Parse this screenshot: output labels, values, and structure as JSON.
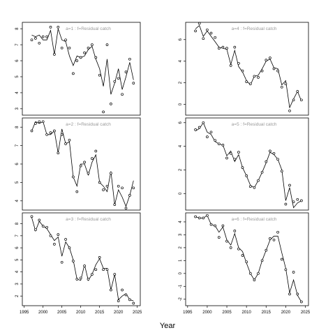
{
  "chart_data": {
    "type": "line",
    "xlabel": "Year",
    "xticks": [
      1995,
      2000,
      2005,
      2010,
      2015,
      2020,
      2025
    ],
    "panels": [
      {
        "label": "a=1  :  f=Residual catch",
        "ylim": [
          2.6,
          8.4
        ],
        "yticks": [
          3,
          4,
          5,
          6,
          7,
          8
        ],
        "line": {
          "x": [
            1997,
            1998,
            1999,
            2000,
            2001,
            2002,
            2003,
            2004,
            2005,
            2006,
            2007,
            2008,
            2009,
            2010,
            2011,
            2012,
            2013,
            2014,
            2015,
            2016,
            2017,
            2018,
            2019,
            2020,
            2021,
            2022,
            2023,
            2024
          ],
          "y": [
            7.6,
            7.5,
            7.6,
            7.3,
            7.3,
            7.9,
            6.4,
            8.0,
            7.3,
            7.2,
            6.3,
            5.7,
            6.3,
            6.2,
            6.3,
            6.7,
            6.9,
            6.1,
            5.5,
            4.4,
            6.1,
            3.9,
            4.6,
            5.5,
            4.2,
            5.0,
            5.9,
            4.8
          ]
        },
        "points": {
          "x": [
            1997,
            1998,
            1999,
            2000,
            2001,
            2002,
            2003,
            2004,
            2005,
            2006,
            2007,
            2008,
            2009,
            2010,
            2011,
            2012,
            2013,
            2014,
            2015,
            2016,
            2017,
            2018,
            2019,
            2020,
            2021,
            2022,
            2023,
            2024
          ],
          "y": [
            7.3,
            7.4,
            7.1,
            7.5,
            7.5,
            8.1,
            6.4,
            8.1,
            6.8,
            7.3,
            6.8,
            5.2,
            6.0,
            6.2,
            6.5,
            6.8,
            7.0,
            6.2,
            5.1,
            2.8,
            7.0,
            3.3,
            4.7,
            4.9,
            3.9,
            5.3,
            6.1,
            4.6
          ]
        }
      },
      {
        "label": "a=2  :  f=Residual catch",
        "ylim": [
          3.5,
          8.5
        ],
        "yticks": [
          4,
          5,
          6,
          7,
          8
        ],
        "line": {
          "x": [
            1997,
            1998,
            1999,
            2000,
            2001,
            2002,
            2003,
            2004,
            2005,
            2006,
            2007,
            2008,
            2009,
            2010,
            2011,
            2012,
            2013,
            2014,
            2015,
            2016,
            2017,
            2018,
            2019,
            2020,
            2021,
            2022,
            2023,
            2024
          ],
          "y": [
            7.8,
            8.3,
            8.2,
            8.3,
            7.6,
            7.6,
            7.8,
            6.6,
            7.9,
            7.1,
            7.2,
            5.3,
            4.8,
            6.0,
            6.0,
            5.4,
            6.1,
            6.5,
            5.0,
            4.8,
            4.5,
            5.6,
            3.8,
            4.6,
            4.2,
            3.7,
            4.3,
            5.1
          ]
        },
        "points": {
          "x": [
            1997,
            1998,
            1999,
            2000,
            2001,
            2002,
            2003,
            2004,
            2005,
            2006,
            2007,
            2008,
            2009,
            2010,
            2011,
            2012,
            2013,
            2014,
            2015,
            2016,
            2017,
            2018,
            2019,
            2020,
            2021,
            2022,
            2023,
            2024
          ],
          "y": [
            7.8,
            8.2,
            8.3,
            8.3,
            7.6,
            7.7,
            7.8,
            6.6,
            7.6,
            7.1,
            7.3,
            5.3,
            4.5,
            5.9,
            6.1,
            5.5,
            6.3,
            6.7,
            5.0,
            4.6,
            4.8,
            5.5,
            3.8,
            4.8,
            4.7,
            3.6,
            4.3,
            4.7
          ]
        }
      },
      {
        "label": "a=3  :  f=Residual catch",
        "ylim": [
          1.2,
          8.9
        ],
        "yticks": [
          2,
          3,
          4,
          5,
          6,
          7,
          8
        ],
        "line": {
          "x": [
            1997,
            1998,
            1999,
            2000,
            2001,
            2002,
            2003,
            2004,
            2005,
            2006,
            2007,
            2008,
            2009,
            2010,
            2011,
            2012,
            2013,
            2014,
            2015,
            2016,
            2017,
            2018,
            2019,
            2020,
            2021,
            2022,
            2023,
            2024
          ],
          "y": [
            8.5,
            7.4,
            8.2,
            7.8,
            7.6,
            7.1,
            6.6,
            6.9,
            5.3,
            6.5,
            6.0,
            5.0,
            3.4,
            3.3,
            4.6,
            3.3,
            3.8,
            4.6,
            5.1,
            4.3,
            4.3,
            2.5,
            3.8,
            1.7,
            2.0,
            2.2,
            1.7,
            1.6
          ]
        },
        "points": {
          "x": [
            1997,
            1998,
            1999,
            2000,
            2001,
            2002,
            2003,
            2004,
            2005,
            2006,
            2007,
            2008,
            2009,
            2010,
            2011,
            2012,
            2013,
            2014,
            2015,
            2016,
            2017,
            2018,
            2019,
            2020,
            2021,
            2022,
            2023,
            2024
          ],
          "y": [
            8.6,
            7.5,
            8.3,
            7.8,
            7.7,
            7.0,
            6.3,
            7.1,
            4.8,
            6.7,
            6.0,
            4.9,
            3.4,
            3.5,
            4.5,
            3.4,
            3.8,
            4.2,
            5.2,
            4.2,
            4.2,
            2.5,
            3.8,
            1.6,
            2.5,
            2.1,
            1.7,
            1.4
          ]
        }
      },
      {
        "label": "a=4  :  f=Residual catch",
        "ylim": [
          -1.0,
          7.6
        ],
        "yticks": [
          0,
          2,
          4,
          6
        ],
        "line": {
          "x": [
            1997,
            1998,
            1999,
            2000,
            2001,
            2002,
            2003,
            2004,
            2005,
            2006,
            2007,
            2008,
            2009,
            2010,
            2011,
            2012,
            2013,
            2014,
            2015,
            2016,
            2017,
            2018,
            2019,
            2020,
            2021,
            2022,
            2023,
            2024
          ],
          "y": [
            7.0,
            7.3,
            6.3,
            6.8,
            6.3,
            5.8,
            5.3,
            5.2,
            5.1,
            3.7,
            5.0,
            3.5,
            3.0,
            2.2,
            1.8,
            2.6,
            2.7,
            3.3,
            4.0,
            4.2,
            3.4,
            3.3,
            1.8,
            2.2,
            -0.3,
            0.5,
            1.2,
            0.3
          ]
        },
        "points": {
          "x": [
            1997,
            1998,
            1999,
            2000,
            2001,
            2002,
            2003,
            2004,
            2005,
            2006,
            2007,
            2008,
            2009,
            2010,
            2011,
            2012,
            2013,
            2014,
            2015,
            2016,
            2017,
            2018,
            2019,
            2020,
            2021,
            2022,
            2023,
            2024
          ],
          "y": [
            6.8,
            7.5,
            6.1,
            6.9,
            6.6,
            6.2,
            5.2,
            5.3,
            5.2,
            3.6,
            5.3,
            3.8,
            3.1,
            2.1,
            1.9,
            2.6,
            2.5,
            3.1,
            4.1,
            4.3,
            3.3,
            3.1,
            1.6,
            1.9,
            -0.6,
            0.4,
            1.2,
            0.4
          ]
        }
      },
      {
        "label": "a=5  :  f=Residual catch",
        "ylim": [
          -1.4,
          6.4
        ],
        "yticks": [
          0,
          2,
          4,
          6
        ],
        "line": {
          "x": [
            1997,
            1998,
            1999,
            2000,
            2001,
            2002,
            2003,
            2004,
            2005,
            2006,
            2007,
            2008,
            2009,
            2010,
            2011,
            2012,
            2013,
            2014,
            2015,
            2016,
            2017,
            2018,
            2019,
            2020,
            2021,
            2022,
            2023,
            2024
          ],
          "y": [
            5.3,
            5.5,
            6.0,
            5.2,
            5.0,
            4.4,
            4.2,
            4.1,
            3.2,
            3.6,
            2.7,
            3.3,
            2.2,
            1.5,
            0.7,
            0.5,
            1.1,
            1.8,
            2.6,
            3.5,
            3.3,
            2.9,
            2.0,
            -0.6,
            0.5,
            -1.2,
            -0.8,
            -0.6
          ]
        },
        "points": {
          "x": [
            1997,
            1998,
            1999,
            2000,
            2001,
            2002,
            2003,
            2004,
            2005,
            2006,
            2007,
            2008,
            2009,
            2010,
            2011,
            2012,
            2013,
            2014,
            2015,
            2016,
            2017,
            2018,
            2019,
            2020,
            2021,
            2022,
            2023,
            2024
          ],
          "y": [
            5.4,
            5.6,
            6.0,
            4.8,
            5.2,
            4.5,
            4.2,
            4.1,
            3.0,
            3.4,
            2.9,
            3.5,
            2.2,
            1.5,
            0.6,
            0.5,
            1.1,
            1.8,
            2.7,
            3.6,
            3.4,
            2.9,
            1.9,
            -0.9,
            0.7,
            -0.7,
            -0.5,
            -0.6
          ]
        }
      },
      {
        "label": "a=6  :  f=Residual catch",
        "ylim": [
          -2.5,
          4.7
        ],
        "yticks": [
          -2,
          -1,
          0,
          1,
          2,
          3,
          4
        ],
        "line": {
          "x": [
            1997,
            1998,
            1999,
            2000,
            2001,
            2002,
            2003,
            2004,
            2005,
            2006,
            2007,
            2008,
            2009,
            2010,
            2011,
            2012,
            2013,
            2014,
            2015,
            2016,
            2017,
            2018,
            2019,
            2020,
            2021,
            2022,
            2023,
            2024
          ],
          "y": [
            4.4,
            4.3,
            4.3,
            4.5,
            3.8,
            3.7,
            3.2,
            3.6,
            2.6,
            2.2,
            3.1,
            2.0,
            1.7,
            0.8,
            0.0,
            -0.5,
            0.0,
            1.0,
            1.8,
            2.6,
            2.9,
            2.9,
            1.6,
            0.4,
            -1.5,
            -0.5,
            -1.7,
            -2.2
          ]
        },
        "points": {
          "x": [
            1997,
            1998,
            1999,
            2000,
            2001,
            2002,
            2003,
            2004,
            2005,
            2006,
            2007,
            2008,
            2009,
            2010,
            2011,
            2012,
            2013,
            2014,
            2015,
            2016,
            2017,
            2018,
            2019,
            2020,
            2021,
            2022,
            2023,
            2024
          ],
          "y": [
            4.4,
            4.3,
            4.3,
            4.5,
            3.8,
            3.7,
            2.8,
            3.7,
            2.5,
            2.0,
            3.3,
            1.9,
            1.4,
            0.9,
            0.0,
            -0.5,
            0.0,
            1.0,
            1.8,
            2.7,
            2.6,
            3.2,
            1.1,
            0.3,
            -1.6,
            0.1,
            -1.6,
            -2.2
          ]
        }
      }
    ]
  }
}
